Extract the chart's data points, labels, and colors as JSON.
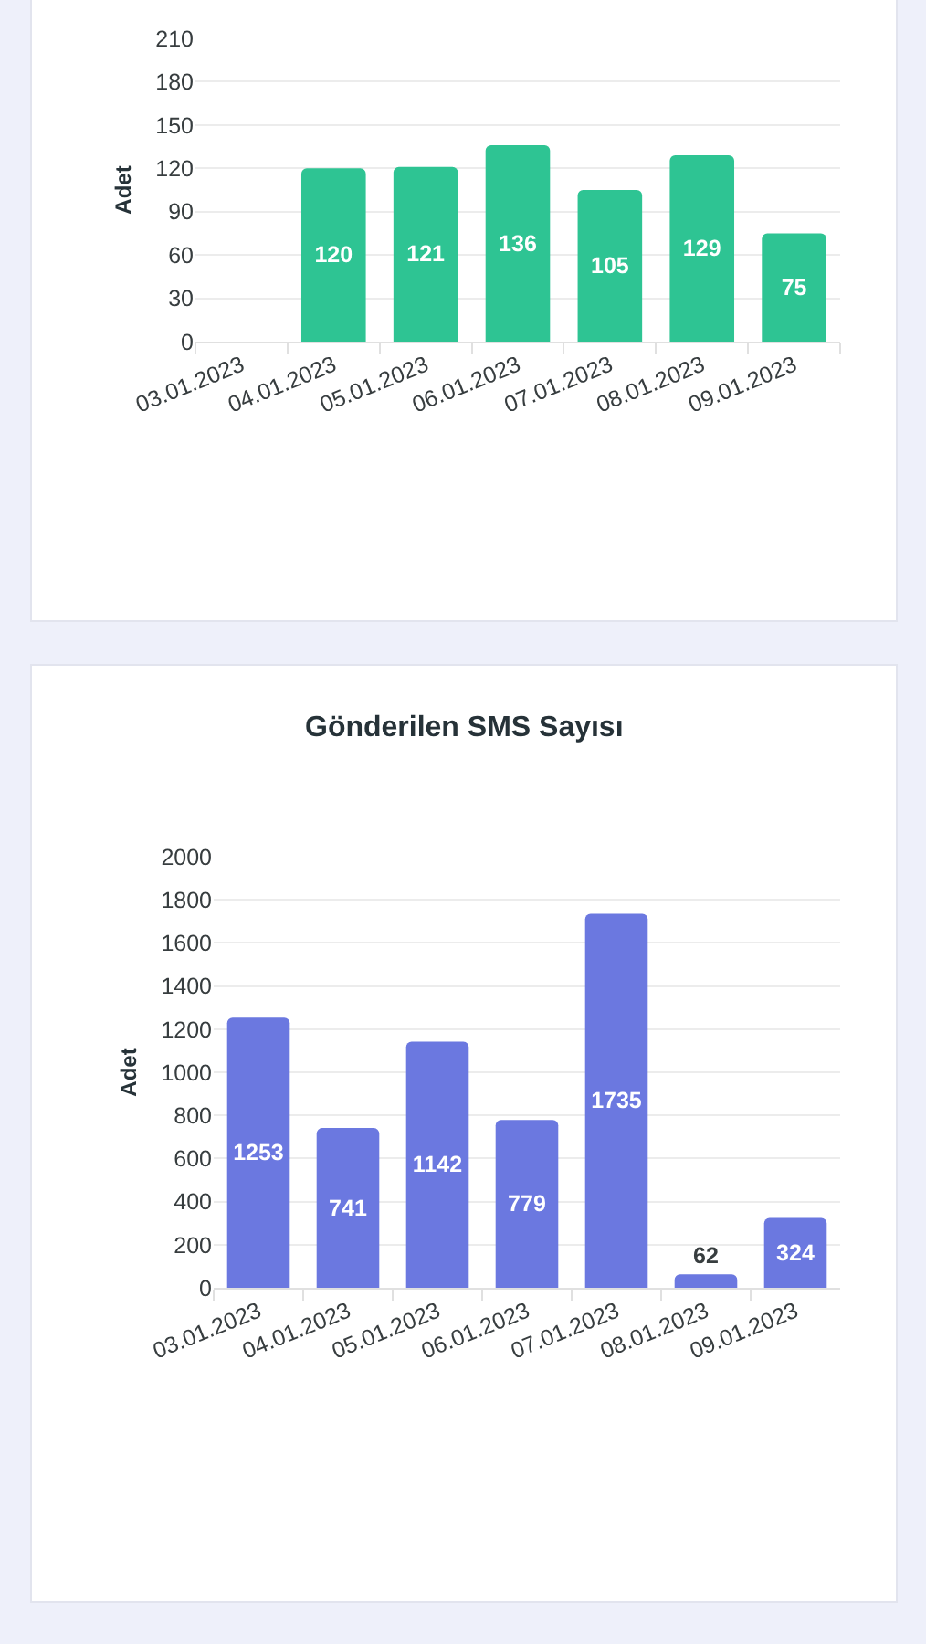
{
  "chart_data": [
    {
      "type": "bar",
      "categories": [
        "03.01.2023",
        "04.01.2023",
        "05.01.2023",
        "06.01.2023",
        "07.01.2023",
        "08.01.2023",
        "09.01.2023"
      ],
      "values": [
        null,
        120,
        121,
        136,
        105,
        129,
        75
      ],
      "color": "#2ec493",
      "ylabel": "Adet",
      "ylim": [
        0,
        210
      ],
      "yticks": [
        0,
        30,
        60,
        90,
        120,
        150,
        180,
        210
      ],
      "grid": "y",
      "data_labels": true
    },
    {
      "type": "bar",
      "title": "Gönderilen SMS Sayısı",
      "categories": [
        "03.01.2023",
        "04.01.2023",
        "05.01.2023",
        "06.01.2023",
        "07.01.2023",
        "08.01.2023",
        "09.01.2023"
      ],
      "values": [
        1253,
        741,
        1142,
        779,
        1735,
        62,
        324
      ],
      "color": "#6b78e0",
      "ylabel": "Adet",
      "ylim": [
        0,
        2000
      ],
      "yticks": [
        0,
        200,
        400,
        600,
        800,
        1000,
        1200,
        1400,
        1600,
        1800,
        2000
      ],
      "grid": "y",
      "data_labels": true
    }
  ]
}
